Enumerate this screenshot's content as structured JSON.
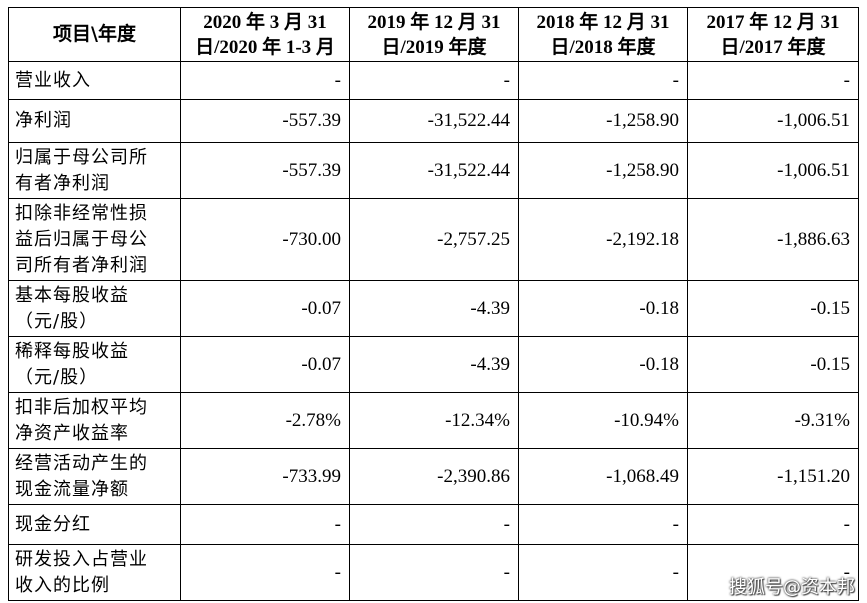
{
  "table": {
    "columns": [
      "项目\\年度",
      "2020 年 3 月 31 日/2020 年 1-3 月",
      "2019 年 12 月 31 日/2019 年度",
      "2018 年 12 月 31 日/2018 年度",
      "2017 年 12 月 31 日/2017 年度"
    ],
    "header": {
      "corner": "项目\\年度",
      "c1_line1": "2020 年 3 月 31",
      "c1_line2": "日/2020 年 1-3 月",
      "c2_line1": "2019 年 12 月 31",
      "c2_line2": "日/2019 年度",
      "c3_line1": "2018 年 12 月 31",
      "c3_line2": "日/2018 年度",
      "c4_line1": "2017 年 12 月 31",
      "c4_line2": "日/2017 年度"
    },
    "rows": [
      {
        "label": [
          "营业收入"
        ],
        "values": [
          "-",
          "-",
          "-",
          "-"
        ]
      },
      {
        "label": [
          "净利润"
        ],
        "values": [
          "-557.39",
          "-31,522.44",
          "-1,258.90",
          "-1,006.51"
        ]
      },
      {
        "label": [
          "归属于母公司所",
          "有者净利润"
        ],
        "values": [
          "-557.39",
          "-31,522.44",
          "-1,258.90",
          "-1,006.51"
        ]
      },
      {
        "label": [
          "扣除非经常性损",
          "益后归属于母公",
          "司所有者净利润"
        ],
        "values": [
          "-730.00",
          "-2,757.25",
          "-2,192.18",
          "-1,886.63"
        ]
      },
      {
        "label": [
          "基本每股收益",
          "（元/股）"
        ],
        "values": [
          "-0.07",
          "-4.39",
          "-0.18",
          "-0.15"
        ]
      },
      {
        "label": [
          "稀释每股收益",
          "（元/股）"
        ],
        "values": [
          "-0.07",
          "-4.39",
          "-0.18",
          "-0.15"
        ]
      },
      {
        "label": [
          "扣非后加权平均",
          "净资产收益率"
        ],
        "values": [
          "-2.78%",
          "-12.34%",
          "-10.94%",
          "-9.31%"
        ]
      },
      {
        "label": [
          "经营活动产生的",
          "现金流量净额"
        ],
        "values": [
          "-733.99",
          "-2,390.86",
          "-1,068.49",
          "-1,151.20"
        ]
      },
      {
        "label": [
          "现金分红"
        ],
        "values": [
          "-",
          "-",
          "-",
          "-"
        ]
      },
      {
        "label": [
          "研发投入占营业",
          "收入的比例"
        ],
        "values": [
          "-",
          "-",
          "-",
          "-"
        ]
      }
    ]
  },
  "watermark": "搜狐号@资本邦"
}
